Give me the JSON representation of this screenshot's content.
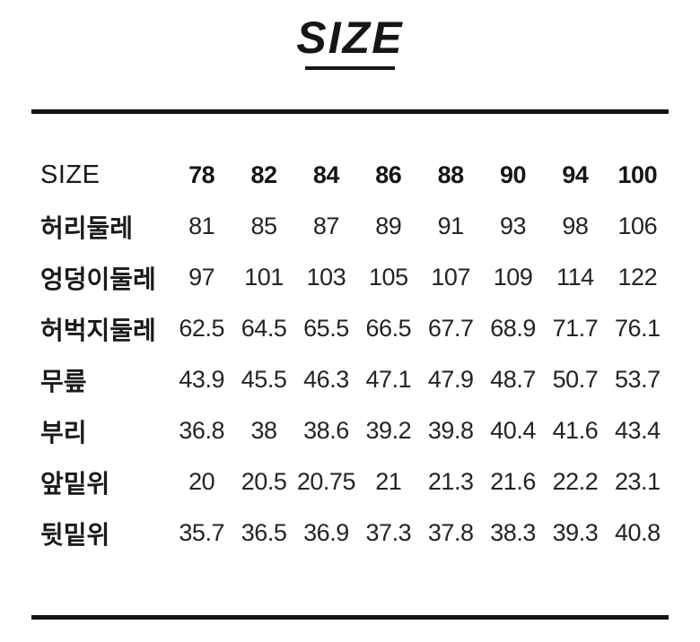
{
  "page": {
    "background_color": "#ffffff",
    "text_color": "#1d1d1d",
    "rule_color": "#131313"
  },
  "title": {
    "text": "SIZE"
  },
  "size_chart": {
    "header": {
      "label": "SIZE",
      "sizes": [
        "78",
        "82",
        "84",
        "86",
        "88",
        "90",
        "94",
        "100"
      ]
    },
    "rows": [
      {
        "label": "허리둘레",
        "values": [
          "81",
          "85",
          "87",
          "89",
          "91",
          "93",
          "98",
          "106"
        ]
      },
      {
        "label": "엉덩이둘레",
        "values": [
          "97",
          "101",
          "103",
          "105",
          "107",
          "109",
          "114",
          "122"
        ]
      },
      {
        "label": "허벅지둘레",
        "values": [
          "62.5",
          "64.5",
          "65.5",
          "66.5",
          "67.7",
          "68.9",
          "71.7",
          "76.1"
        ]
      },
      {
        "label": "무릎",
        "values": [
          "43.9",
          "45.5",
          "46.3",
          "47.1",
          "47.9",
          "48.7",
          "50.7",
          "53.7"
        ]
      },
      {
        "label": "부리",
        "values": [
          "36.8",
          "38",
          "38.6",
          "39.2",
          "39.8",
          "40.4",
          "41.6",
          "43.4"
        ]
      },
      {
        "label": "앞밑위",
        "values": [
          "20",
          "20.5",
          "20.75",
          "21",
          "21.3",
          "21.6",
          "22.2",
          "23.1"
        ]
      },
      {
        "label": "뒷밑위",
        "values": [
          "35.7",
          "36.5",
          "36.9",
          "37.3",
          "37.8",
          "38.3",
          "39.3",
          "40.8"
        ]
      }
    ]
  },
  "chart_data": {
    "type": "table",
    "title": "SIZE",
    "categories": [
      "78",
      "82",
      "84",
      "86",
      "88",
      "90",
      "94",
      "100"
    ],
    "series": [
      {
        "name": "허리둘레",
        "values": [
          81,
          85,
          87,
          89,
          91,
          93,
          98,
          106
        ]
      },
      {
        "name": "엉덩이둘레",
        "values": [
          97,
          101,
          103,
          105,
          107,
          109,
          114,
          122
        ]
      },
      {
        "name": "허벅지둘레",
        "values": [
          62.5,
          64.5,
          65.5,
          66.5,
          67.7,
          68.9,
          71.7,
          76.1
        ]
      },
      {
        "name": "무릎",
        "values": [
          43.9,
          45.5,
          46.3,
          47.1,
          47.9,
          48.7,
          50.7,
          53.7
        ]
      },
      {
        "name": "부리",
        "values": [
          36.8,
          38,
          38.6,
          39.2,
          39.8,
          40.4,
          41.6,
          43.4
        ]
      },
      {
        "name": "앞밑위",
        "values": [
          20,
          20.5,
          20.75,
          21,
          21.3,
          21.6,
          22.2,
          23.1
        ]
      },
      {
        "name": "뒷밑위",
        "values": [
          35.7,
          36.5,
          36.9,
          37.3,
          37.8,
          38.3,
          39.3,
          40.8
        ]
      }
    ]
  }
}
